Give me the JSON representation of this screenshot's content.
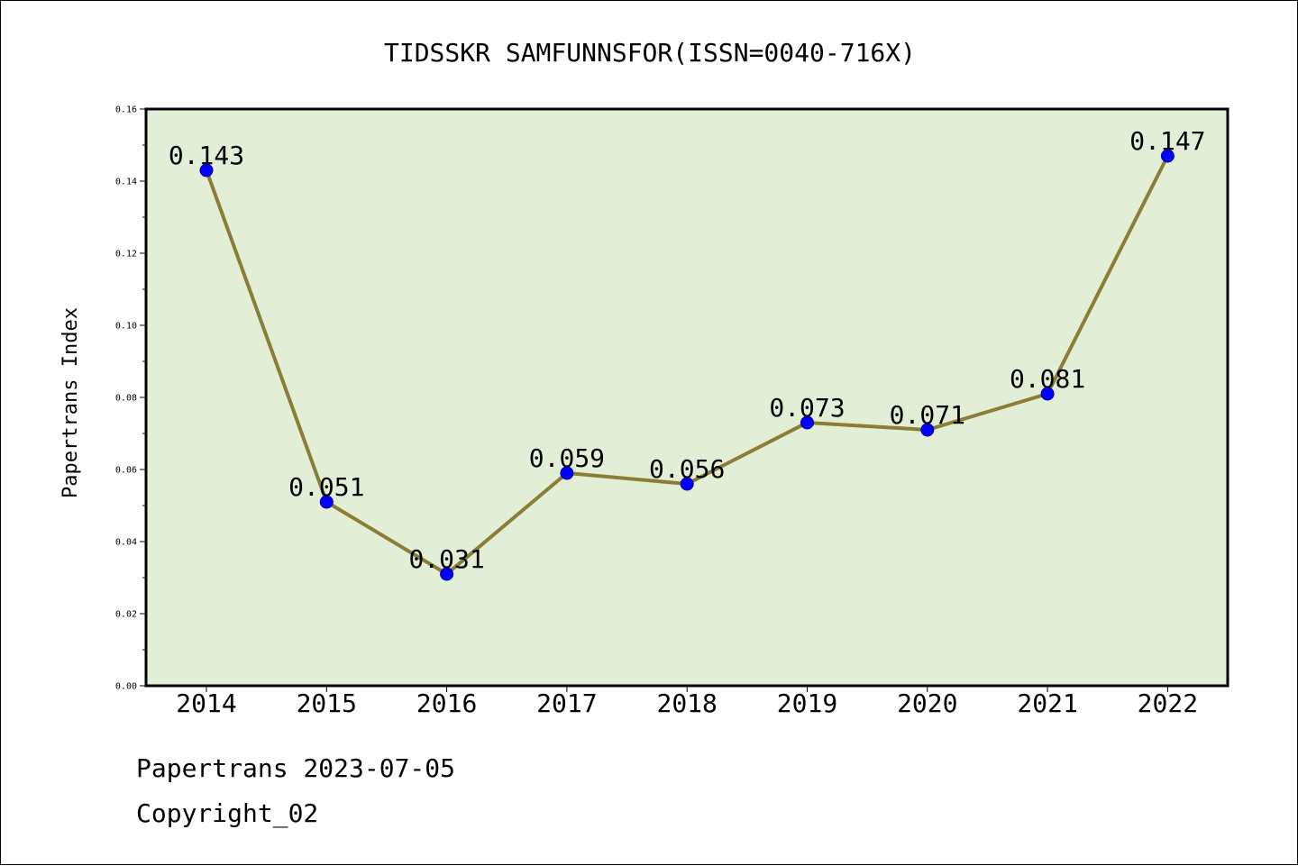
{
  "chart_data": {
    "type": "line",
    "title": "TIDSSKR SAMFUNNSFOR(ISSN=0040-716X)",
    "xlabel": "",
    "ylabel": "Papertrans Index",
    "categories": [
      "2014",
      "2015",
      "2016",
      "2017",
      "2018",
      "2019",
      "2020",
      "2021",
      "2022"
    ],
    "series": [
      {
        "values": [
          0.143,
          0.051,
          0.031,
          0.059,
          0.056,
          0.073,
          0.071,
          0.081,
          0.147
        ],
        "labels": [
          "0.143",
          "0.051",
          "0.031",
          "0.059",
          "0.056",
          "0.073",
          "0.071",
          "0.081",
          "0.147"
        ]
      }
    ],
    "ylim": [
      0,
      0.16
    ],
    "yticks": [
      "0.00",
      "0.02",
      "0.04",
      "0.06",
      "0.08",
      "0.10",
      "0.12",
      "0.14",
      "0.16"
    ],
    "grid": false,
    "legend": "none",
    "colors": {
      "line": "#8b7d35",
      "marker": "#0000ff",
      "plot_background": "#e2efd6",
      "axes": "#000000"
    }
  },
  "footer": {
    "date_line": "Papertrans 2023-07-05",
    "copyright": "Copyright_02"
  }
}
